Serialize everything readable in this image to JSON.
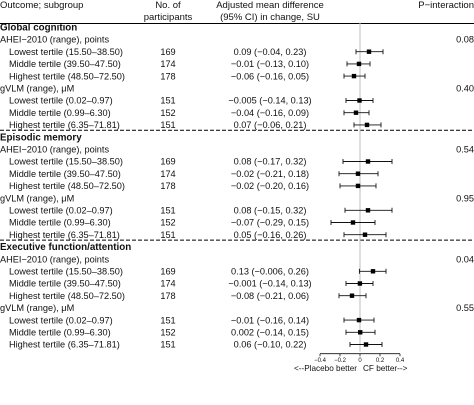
{
  "chart_data": {
    "type": "forest",
    "headers": {
      "subgroup": "Outcome; subgroup",
      "n": [
        "No. of",
        "participants"
      ],
      "estimate": [
        "Adjusted mean difference",
        "(95% CI) in change, SU"
      ],
      "p": "P−interaction"
    },
    "xlim": [
      -0.4,
      0.4
    ],
    "ticks": [
      "−0.4",
      "−0.2",
      "0",
      "0.2",
      "0.4"
    ],
    "tick_values": [
      -0.4,
      -0.2,
      0,
      0.2,
      0.4
    ],
    "reference_line": 0,
    "footer": {
      "left": "<--Placebo better",
      "right": "CF better-->"
    },
    "sections": [
      {
        "title": "Global cognition",
        "groups": [
          {
            "label": "AHEI−2010 (range), points",
            "p": "0.08",
            "rows": [
              {
                "label": "Lowest tertile (15.50–38.50)",
                "n": "169",
                "ci_text": "0.09 (−0.04, 0.23)",
                "est": 0.09,
                "lo": -0.04,
                "hi": 0.23
              },
              {
                "label": "Middle tertile (39.50–47.50)",
                "n": "174",
                "ci_text": "−0.01 (−0.13, 0.10)",
                "est": -0.01,
                "lo": -0.13,
                "hi": 0.1
              },
              {
                "label": "Highest tertile (48.50–72.50)",
                "n": "178",
                "ci_text": "−0.06 (−0.16, 0.05)",
                "est": -0.06,
                "lo": -0.16,
                "hi": 0.05
              }
            ]
          },
          {
            "label": "gVLM (range), μM",
            "p": "0.40",
            "rows": [
              {
                "label": "Lowest tertile (0.02–0.97)",
                "n": "151",
                "ci_text": "−0.005 (−0.14, 0.13)",
                "est": -0.005,
                "lo": -0.14,
                "hi": 0.13
              },
              {
                "label": "Middle tertile (0.99–6.30)",
                "n": "152",
                "ci_text": "−0.04 (−0.16, 0.09)",
                "est": -0.04,
                "lo": -0.16,
                "hi": 0.09
              },
              {
                "label": "Highest tertile (6.35–71.81)",
                "n": "151",
                "ci_text": "0.07 (−0.06, 0.21)",
                "est": 0.07,
                "lo": -0.06,
                "hi": 0.21
              }
            ]
          }
        ]
      },
      {
        "title": "Episodic memory",
        "groups": [
          {
            "label": "AHEI−2010 (range), points",
            "p": "0.54",
            "rows": [
              {
                "label": "Lowest tertile (15.50–38.50)",
                "n": "169",
                "ci_text": "0.08 (−0.17, 0.32)",
                "est": 0.08,
                "lo": -0.17,
                "hi": 0.32
              },
              {
                "label": "Middle tertile (39.50–47.50)",
                "n": "174",
                "ci_text": "−0.02 (−0.21, 0.18)",
                "est": -0.02,
                "lo": -0.21,
                "hi": 0.18
              },
              {
                "label": "Highest tertile (48.50–72.50)",
                "n": "178",
                "ci_text": "−0.02 (−0.20, 0.16)",
                "est": -0.02,
                "lo": -0.2,
                "hi": 0.16
              }
            ]
          },
          {
            "label": "gVLM (range), μM",
            "p": "0.95",
            "rows": [
              {
                "label": "Lowest tertile (0.02–0.97)",
                "n": "151",
                "ci_text": "0.08 (−0.15, 0.32)",
                "est": 0.08,
                "lo": -0.15,
                "hi": 0.32
              },
              {
                "label": "Middle tertile (0.99–6.30)",
                "n": "152",
                "ci_text": "−0.07 (−0.29, 0.15)",
                "est": -0.07,
                "lo": -0.29,
                "hi": 0.15
              },
              {
                "label": "Highest tertile (6.35–71.81)",
                "n": "151",
                "ci_text": "0.05 (−0.16, 0.26)",
                "est": 0.05,
                "lo": -0.16,
                "hi": 0.26
              }
            ]
          }
        ]
      },
      {
        "title": "Executive function/attention",
        "groups": [
          {
            "label": "AHEI−2010 (range), points",
            "p": "0.04",
            "rows": [
              {
                "label": "Lowest tertile (15.50–38.50)",
                "n": "169",
                "ci_text": "0.13 (−0.006, 0.26)",
                "est": 0.13,
                "lo": -0.006,
                "hi": 0.26
              },
              {
                "label": "Middle tertile (39.50–47.50)",
                "n": "174",
                "ci_text": "−0.001 (−0.14, 0.13)",
                "est": -0.001,
                "lo": -0.14,
                "hi": 0.13
              },
              {
                "label": "Highest tertile (48.50–72.50)",
                "n": "178",
                "ci_text": "−0.08 (−0.21, 0.06)",
                "est": -0.08,
                "lo": -0.21,
                "hi": 0.06
              }
            ]
          },
          {
            "label": "gVLM (range), μM",
            "p": "0.55",
            "rows": [
              {
                "label": "Lowest tertile (0.02–0.97)",
                "n": "151",
                "ci_text": "−0.01 (−0.16, 0.14)",
                "est": -0.01,
                "lo": -0.16,
                "hi": 0.14
              },
              {
                "label": "Middle tertile (0.99–6.30)",
                "n": "152",
                "ci_text": "0.002 (−0.14, 0.15)",
                "est": 0.002,
                "lo": -0.14,
                "hi": 0.15
              },
              {
                "label": "Highest tertile (6.35–71.81)",
                "n": "151",
                "ci_text": "0.06 (−0.10, 0.22)",
                "est": 0.06,
                "lo": -0.1,
                "hi": 0.22
              }
            ]
          }
        ]
      }
    ]
  }
}
